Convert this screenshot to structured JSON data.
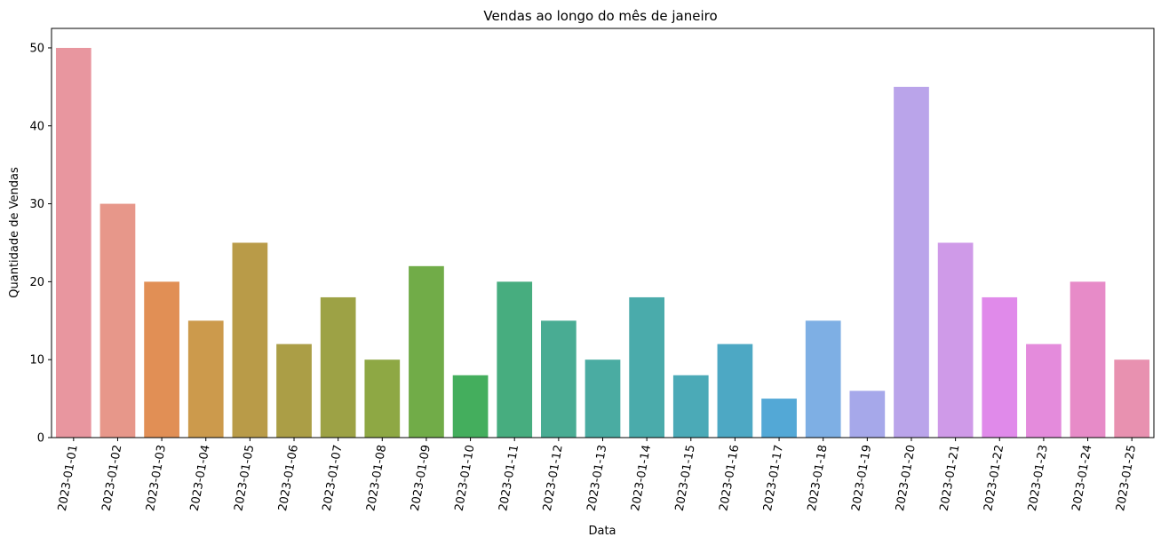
{
  "chart_data": {
    "type": "bar",
    "title": "Vendas ao longo do mês de janeiro",
    "xlabel": "Data",
    "ylabel": "Quantidade de Vendas",
    "ylim": [
      0,
      52.5
    ],
    "yticks": [
      0,
      10,
      20,
      30,
      40,
      50
    ],
    "grid": false,
    "categories": [
      "2023-01-01",
      "2023-01-02",
      "2023-01-03",
      "2023-01-04",
      "2023-01-05",
      "2023-01-06",
      "2023-01-07",
      "2023-01-08",
      "2023-01-09",
      "2023-01-10",
      "2023-01-11",
      "2023-01-12",
      "2023-01-13",
      "2023-01-14",
      "2023-01-15",
      "2023-01-16",
      "2023-01-17",
      "2023-01-18",
      "2023-01-19",
      "2023-01-20",
      "2023-01-21",
      "2023-01-22",
      "2023-01-23",
      "2023-01-24",
      "2023-01-25"
    ],
    "values": [
      50,
      30,
      20,
      15,
      25,
      12,
      18,
      10,
      22,
      8,
      20,
      15,
      10,
      18,
      8,
      12,
      5,
      15,
      6,
      45,
      25,
      18,
      12,
      20,
      10
    ],
    "colors": [
      "#e8969f",
      "#e7978a",
      "#e18f55",
      "#cc9a4c",
      "#b99b48",
      "#ab9e46",
      "#9da245",
      "#8ea844",
      "#71ac48",
      "#44ae5d",
      "#47ad7f",
      "#49ac93",
      "#4aaca2",
      "#4aabab",
      "#4baab7",
      "#4da8c4",
      "#53a8d6",
      "#7eafe4",
      "#a6a8ea",
      "#baa4ea",
      "#cf9ae8",
      "#e08aea",
      "#e48bdc",
      "#e78bc8",
      "#e891b0"
    ]
  }
}
